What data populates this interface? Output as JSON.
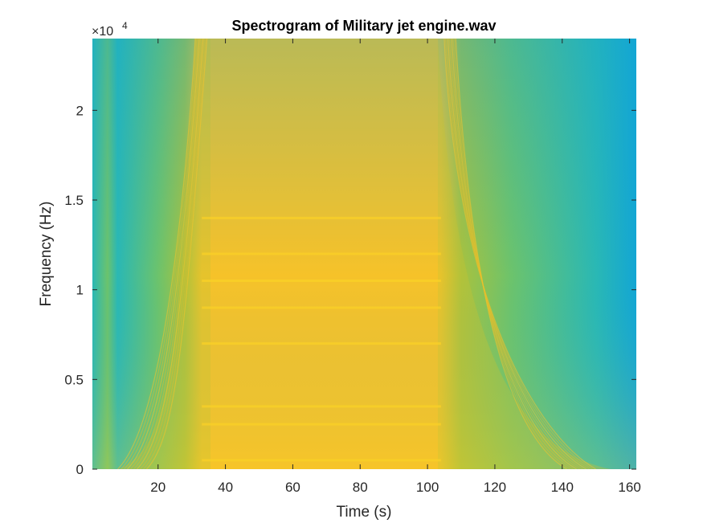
{
  "chart_data": {
    "type": "heatmap",
    "title": "Spectrogram of Military jet engine.wav",
    "xlabel": "Time (s)",
    "ylabel": "Frequency (Hz)",
    "y_exponent_base": "×10",
    "y_exponent_power": "4",
    "xlim": [
      0.5,
      162
    ],
    "ylim": [
      0,
      24000
    ],
    "xticks": [
      20,
      40,
      60,
      80,
      100,
      120,
      140,
      160
    ],
    "xtick_labels": [
      "20",
      "40",
      "60",
      "80",
      "100",
      "120",
      "140",
      "160"
    ],
    "yticks": [
      0,
      5000,
      10000,
      15000,
      20000
    ],
    "ytick_labels": [
      "0",
      "0.5",
      "1",
      "1.5",
      "2"
    ],
    "colormap": [
      "#13a6d4",
      "#2ab8b4",
      "#6cc36c",
      "#a8c23e",
      "#d8bc30",
      "#f7c329",
      "#fbd226"
    ],
    "features": {
      "loud_segment_start_s": 33,
      "loud_segment_end_s": 104,
      "ramp_up_start_s": 8,
      "ramp_down_end_s": 150,
      "bright_bands_hz": [
        500,
        2500,
        3500,
        7000,
        9000,
        10500,
        12000,
        14000
      ]
    },
    "grid": false
  }
}
